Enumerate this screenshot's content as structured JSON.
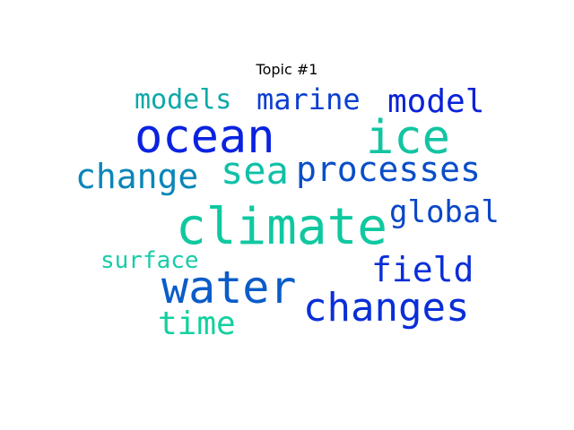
{
  "title": "Topic #1",
  "words": [
    {
      "text": "climate",
      "color": "#0fc8a0"
    },
    {
      "text": "ocean",
      "color": "#0a22e0"
    },
    {
      "text": "ice",
      "color": "#12c4a2"
    },
    {
      "text": "water",
      "color": "#0a5cc8"
    },
    {
      "text": "changes",
      "color": "#0a2ed8"
    },
    {
      "text": "processes",
      "color": "#0a4ec8"
    },
    {
      "text": "sea",
      "color": "#10c0a8"
    },
    {
      "text": "change",
      "color": "#0a86b8"
    },
    {
      "text": "field",
      "color": "#0a2ed8"
    },
    {
      "text": "global",
      "color": "#0a46c8"
    },
    {
      "text": "model",
      "color": "#0a22d8"
    },
    {
      "text": "marine",
      "color": "#0a3ed0"
    },
    {
      "text": "models",
      "color": "#0ea8a8"
    },
    {
      "text": "time",
      "color": "#14d0a0"
    },
    {
      "text": "surface",
      "color": "#18cca8"
    }
  ]
}
